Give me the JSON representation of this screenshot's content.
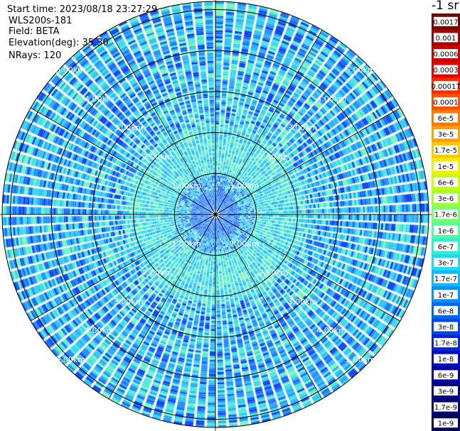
{
  "header": {
    "start_time": "Start time: 2023/08/18 23:27:29",
    "device": "WLS200s-181",
    "field": "Field: BETA",
    "elevation": "Elevation(deg): 35.30",
    "nrays": "NRays: 120"
  },
  "colorbar": {
    "unit_title": "-1 sr",
    "ticks": [
      "0.0017",
      "0.001",
      "0.0006",
      "0.0003",
      "0.00017",
      "0.0001",
      "6e-5",
      "3e-5",
      "1.7e-5",
      "1e-5",
      "6e-6",
      "3e-6",
      "1.7e-6",
      "1e-6",
      "6e-7",
      "3e-7",
      "1.7e-7",
      "1e-7",
      "6e-8",
      "3e-8",
      "1.7e-8",
      "1e-8",
      "6e-9",
      "3e-9",
      "1.7e-9",
      "1e-9"
    ],
    "colors": [
      "#7a0000",
      "#a00000",
      "#c80000",
      "#e80000",
      "#ff2a00",
      "#ff5000",
      "#ff7800",
      "#ffa000",
      "#ffc800",
      "#f0f000",
      "#c8ff00",
      "#a0ff30",
      "#78ff70",
      "#50ffa0",
      "#30f0d0",
      "#20d8f0",
      "#10b8ff",
      "#0090ff",
      "#0068f0",
      "#0048e0",
      "#0028d0",
      "#0010b8",
      "#0000a0",
      "#000088",
      "#000070",
      "#000058"
    ]
  },
  "chart_data": {
    "type": "heatmap",
    "title": "",
    "field": "BETA",
    "instrument": "WLS200s-181",
    "elevation_deg": 35.3,
    "n_rays": 120,
    "range_rings_km": [
      1.0,
      2.0,
      3.0,
      4.0,
      5.0
    ],
    "ring_labels": [
      "1.00km",
      "2.00km",
      "3.00km",
      "4.00km",
      "5.00km"
    ],
    "spoke_angles_deg": [
      0,
      30,
      60,
      90,
      120,
      150,
      180,
      210,
      240,
      270,
      300,
      330
    ],
    "max_range_km": 5.2,
    "value_range": [
      1e-09,
      0.0017
    ],
    "value_scale": "log",
    "dominant_value_range": [
      3e-08,
      3e-07
    ],
    "enhanced_region_range_km": [
      0.9,
      2.2
    ],
    "enhanced_region_value": 1.7e-07,
    "grid": true,
    "legend_position": "right"
  }
}
